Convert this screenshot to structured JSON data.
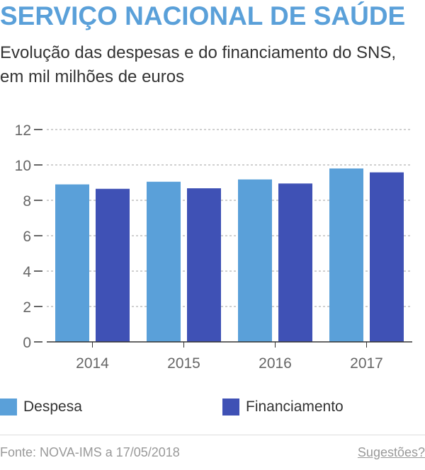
{
  "header": {
    "title": "SERVIÇO NACIONAL DE SAÚDE",
    "subtitle": "Evolução das despesas e do financiamento do SNS, em mil milhões de euros"
  },
  "legend": {
    "items": [
      {
        "label": "Despesa",
        "color": "#5aa0d9"
      },
      {
        "label": "Financiamento",
        "color": "#3f51b5"
      }
    ]
  },
  "footer": {
    "source": "Fonte: NOVA-IMS a 17/05/2018",
    "link": "Sugestões?"
  },
  "chart_data": {
    "type": "bar",
    "categories": [
      "2014",
      "2015",
      "2016",
      "2017"
    ],
    "series": [
      {
        "name": "Despesa",
        "color": "#5aa0d9",
        "values": [
          8.9,
          9.05,
          9.18,
          9.8
        ]
      },
      {
        "name": "Financiamento",
        "color": "#3f51b5",
        "values": [
          8.65,
          8.68,
          8.95,
          9.58
        ]
      }
    ],
    "y_ticks": [
      0,
      2,
      4,
      6,
      8,
      10,
      12
    ],
    "ylim": [
      0,
      12
    ],
    "grid": true,
    "legend_position": "bottom"
  }
}
